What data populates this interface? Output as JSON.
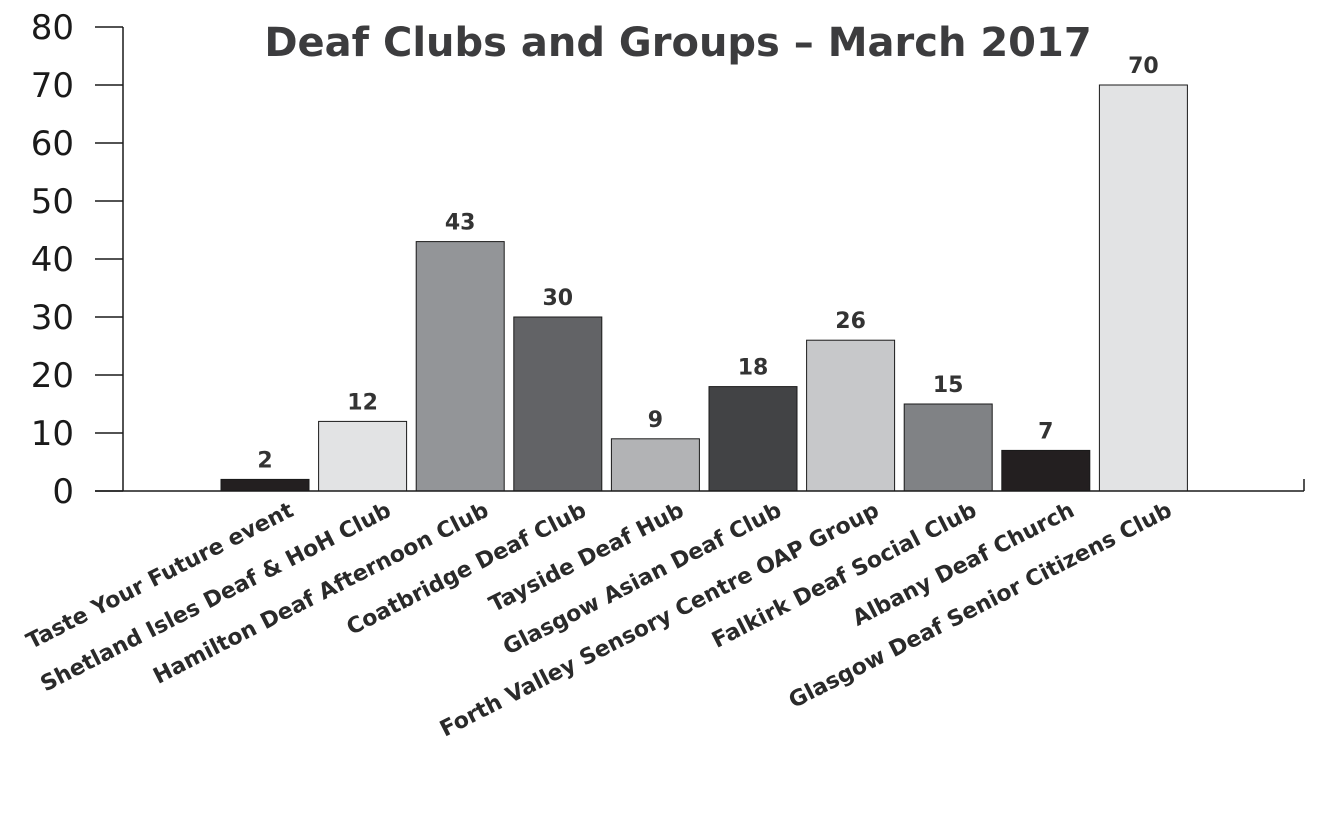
{
  "chart_data": {
    "type": "bar",
    "title": "Deaf Clubs and Groups – March 2017",
    "xlabel": "",
    "ylabel": "",
    "ylim": [
      0,
      80
    ],
    "yticks": [
      0,
      10,
      20,
      30,
      40,
      50,
      60,
      70,
      80
    ],
    "grid": false,
    "legend": "none",
    "categories": [
      "Taste Your Future event",
      "Shetland Isles Deaf & HoH Club",
      "Hamilton Deaf Afternoon Club",
      "Coatbridge Deaf Club",
      "Tayside Deaf Hub",
      "Glasgow Asian Deaf Club",
      "Forth Valley Sensory Centre OAP Group",
      "Falkirk Deaf Social Club",
      "Albany Deaf Church",
      "Glasgow Deaf Senior Citizens Club"
    ],
    "values": [
      2,
      12,
      43,
      30,
      9,
      18,
      26,
      15,
      7,
      70
    ],
    "bar_colors": [
      "#231f20",
      "#e2e3e4",
      "#939598",
      "#626366",
      "#b2b3b5",
      "#424345",
      "#c7c8ca",
      "#808285",
      "#231f20",
      "#e2e3e4"
    ]
  }
}
